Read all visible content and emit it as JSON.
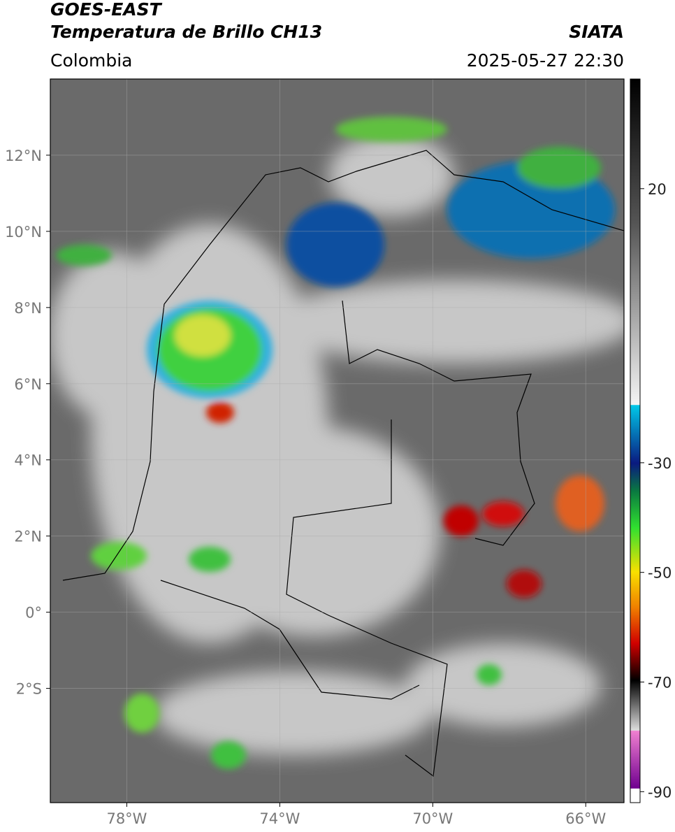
{
  "header": {
    "line1": "GOES-EAST",
    "title": "Temperatura de Brillo CH13",
    "source": "SIATA",
    "region": "Colombia",
    "datetime": "2025-05-27 22:30"
  },
  "map": {
    "lonlim": [
      -80,
      -65
    ],
    "latlim": [
      -5,
      14
    ],
    "xticks": [
      {
        "value": -78,
        "label": "78°W"
      },
      {
        "value": -74,
        "label": "74°W"
      },
      {
        "value": -70,
        "label": "70°W"
      },
      {
        "value": -66,
        "label": "66°W"
      }
    ],
    "yticks": [
      {
        "value": 12,
        "label": "12°N"
      },
      {
        "value": 10,
        "label": "10°N"
      },
      {
        "value": 8,
        "label": "8°N"
      },
      {
        "value": 6,
        "label": "6°N"
      },
      {
        "value": 4,
        "label": "4°N"
      },
      {
        "value": 2,
        "label": "2°N"
      },
      {
        "value": 0,
        "label": "0°"
      },
      {
        "value": -2,
        "label": "2°S"
      }
    ],
    "grid": true
  },
  "colorbar": {
    "lim": [
      40,
      -92
    ],
    "ticks": [
      20,
      -30,
      -50,
      -70,
      -90
    ]
  }
}
